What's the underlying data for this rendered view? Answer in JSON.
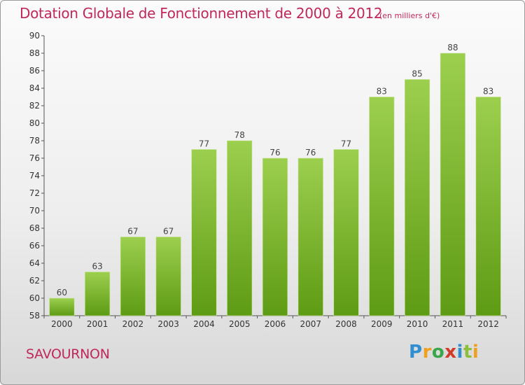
{
  "header": {
    "title": "Dotation Globale de Fonctionnement de 2000 à 2012",
    "unit": "(en milliers d'€)"
  },
  "footer": {
    "commune": "SAVOURNON",
    "logo": {
      "letters": [
        "P",
        "r",
        "o",
        "x",
        "i",
        "t",
        "i"
      ],
      "colors": [
        "#2f8fd0",
        "#f0a020",
        "#39a64a",
        "#d23a2a",
        "#2f8fd0",
        "#8cbd3c",
        "#f0a020"
      ]
    }
  },
  "colors": {
    "bar_top": "#9ccf4e",
    "bar_bottom": "#5e9b14",
    "text_accent": "#c0285a"
  },
  "chart_data": {
    "type": "bar",
    "title": "Dotation Globale de Fonctionnement de 2000 à 2012",
    "subtitle": "(en milliers d'€)",
    "xlabel": "",
    "ylabel": "",
    "categories": [
      "2000",
      "2001",
      "2002",
      "2003",
      "2004",
      "2005",
      "2006",
      "2007",
      "2008",
      "2009",
      "2010",
      "2011",
      "2012"
    ],
    "values": [
      60,
      63,
      67,
      67,
      77,
      78,
      76,
      76,
      77,
      83,
      85,
      88,
      83
    ],
    "ylim": [
      58,
      90
    ],
    "yticks": [
      58,
      60,
      62,
      64,
      66,
      68,
      70,
      72,
      74,
      76,
      78,
      80,
      82,
      84,
      86,
      88,
      90
    ],
    "grid": false,
    "legend": "none"
  }
}
